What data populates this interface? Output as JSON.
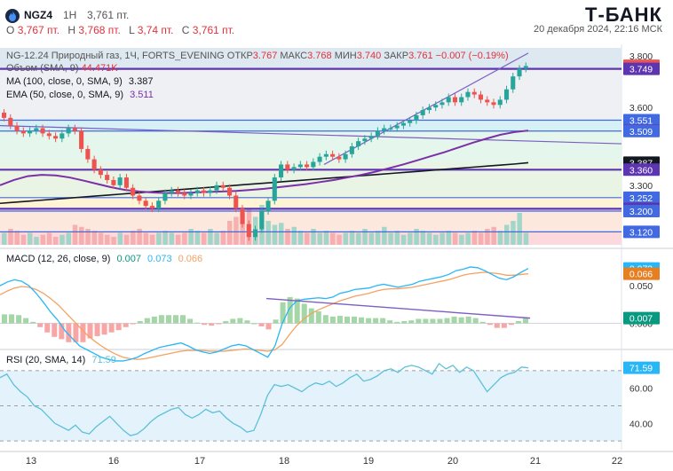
{
  "header": {
    "ticker": "NGZ4",
    "timeframe": "1H",
    "last_price": "3,761 пт.",
    "ohlc": [
      {
        "label": "O",
        "value": "3,767 пт."
      },
      {
        "label": "H",
        "value": "3,768 пт."
      },
      {
        "label": "L",
        "value": "3,74 пт."
      },
      {
        "label": "C",
        "value": "3,761 пт."
      }
    ],
    "brand": "Т-БАНК",
    "datetime": "20 декабря 2024, 22:16 МСК"
  },
  "colors": {
    "up": "#26a69a",
    "down": "#ef5350",
    "ma": "#131722",
    "ema": "#7b2fa8",
    "hline": "#4169e1",
    "channel": "#7b5fc4",
    "macd": "#29b6f6",
    "signal": "#f4a261",
    "rsi": "#5ec1d8",
    "label_purple": "#5e35b1"
  },
  "legend": {
    "title": "NG-12.24 Природный газ, 1Ч, FORTS_EVENING",
    "open_label": "ОТКР",
    "open": "3.767",
    "high_label": "МАКС",
    "high": "3.768",
    "low_label": "МИН",
    "low": "3.740",
    "close_label": "ЗАКР",
    "close": "3.761",
    "change": "−0.007 (−0.19%)",
    "volume": "Объем (SMA, 9)",
    "volume_value": "44.471K",
    "ma": "MA (100, close, 0, SMA, 9)",
    "ma_value": "3.387",
    "ema": "EMA (50, close, 0, SMA, 9)",
    "ema_value": "3.511",
    "macd": "MACD (12, 26, close, 9)",
    "macd_v1": "0.007",
    "macd_v2": "0.073",
    "macd_v3": "0.066",
    "rsi": "RSI (20, SMA, 14)",
    "rsi_value": "71.59"
  },
  "chart_data": [
    {
      "type": "candlestick",
      "title": "NG-12.24 Природный газ, 1Ч, FORTS_EVENING",
      "x_ticks": [
        "13",
        "16",
        "17",
        "18",
        "19",
        "20",
        "21",
        "22"
      ],
      "y_ticks": [
        "3.800",
        "3.600",
        "3.300",
        "3.200",
        "3.120"
      ],
      "price_labels": [
        {
          "text": "3.761",
          "value": 3.761,
          "kind": "last"
        },
        {
          "text": "3.749",
          "value": 3.749,
          "kind": "purple"
        },
        {
          "text": "3.551",
          "value": 3.551,
          "kind": "blue"
        },
        {
          "text": "3.511",
          "value": 3.511,
          "kind": "ema"
        },
        {
          "text": "3.509",
          "value": 3.509,
          "kind": "blue"
        },
        {
          "text": "3.387",
          "value": 3.387,
          "kind": "ma"
        },
        {
          "text": "3.360",
          "value": 3.36,
          "kind": "purple"
        },
        {
          "text": "3.252",
          "value": 3.252,
          "kind": "blue"
        },
        {
          "text": "3.209",
          "value": 3.209,
          "kind": "purple"
        },
        {
          "text": "3.200",
          "value": 3.2,
          "kind": "blue"
        },
        {
          "text": "3.120",
          "value": 3.12,
          "kind": "blue"
        }
      ],
      "ylim": [
        3.07,
        3.83
      ],
      "close": [
        3.56,
        3.53,
        3.51,
        3.5,
        3.51,
        3.52,
        3.5,
        3.49,
        3.48,
        3.5,
        3.52,
        3.51,
        3.44,
        3.4,
        3.36,
        3.34,
        3.32,
        3.3,
        3.33,
        3.29,
        3.26,
        3.24,
        3.22,
        3.21,
        3.24,
        3.27,
        3.28,
        3.27,
        3.26,
        3.27,
        3.28,
        3.27,
        3.28,
        3.3,
        3.29,
        3.26,
        3.21,
        3.15,
        3.1,
        3.13,
        3.2,
        3.24,
        3.33,
        3.38,
        3.36,
        3.37,
        3.38,
        3.37,
        3.39,
        3.41,
        3.42,
        3.41,
        3.4,
        3.42,
        3.45,
        3.47,
        3.48,
        3.49,
        3.51,
        3.52,
        3.52,
        3.53,
        3.54,
        3.55,
        3.57,
        3.59,
        3.6,
        3.61,
        3.62,
        3.64,
        3.62,
        3.64,
        3.66,
        3.65,
        3.63,
        3.62,
        3.61,
        3.63,
        3.67,
        3.72,
        3.75,
        3.76
      ],
      "ma100": [
        3.23,
        3.234,
        3.238,
        3.242,
        3.246,
        3.25,
        3.254,
        3.258,
        3.262,
        3.266,
        3.27,
        3.274,
        3.278,
        3.282,
        3.286,
        3.29,
        3.294,
        3.298,
        3.302,
        3.306,
        3.31,
        3.314,
        3.318,
        3.322,
        3.326,
        3.33,
        3.334,
        3.338,
        3.342,
        3.346,
        3.35,
        3.354,
        3.358,
        3.362,
        3.366,
        3.37,
        3.374,
        3.378,
        3.382,
        3.387
      ],
      "ema50": [
        3.3,
        3.32,
        3.335,
        3.34,
        3.338,
        3.33,
        3.318,
        3.305,
        3.292,
        3.282,
        3.276,
        3.272,
        3.27,
        3.27,
        3.272,
        3.274,
        3.276,
        3.278,
        3.282,
        3.286,
        3.292,
        3.298,
        3.304,
        3.312,
        3.32,
        3.33,
        3.34,
        3.352,
        3.366,
        3.38,
        3.396,
        3.412,
        3.428,
        3.446,
        3.464,
        3.48,
        3.495,
        3.505,
        3.511
      ],
      "volume": [
        0.3,
        0.4,
        0.35,
        0.25,
        0.3,
        0.2,
        0.25,
        0.3,
        0.2,
        0.25,
        0.3,
        0.5,
        0.45,
        0.4,
        0.35,
        0.3,
        0.25,
        0.2,
        0.3,
        0.25,
        0.35,
        0.4,
        0.3,
        0.25,
        0.3,
        0.35,
        0.3,
        0.25,
        0.3,
        0.4,
        0.35,
        0.3,
        0.4,
        0.3,
        0.35,
        0.6,
        0.7,
        0.8,
        0.9,
        0.7,
        1.0,
        0.6,
        0.5,
        0.55,
        0.4,
        0.45,
        0.35,
        0.3,
        0.4,
        0.3,
        0.35,
        0.3,
        0.25,
        0.3,
        0.35,
        0.3,
        0.4,
        0.3,
        0.35,
        0.45,
        0.3,
        0.35,
        0.25,
        0.3,
        0.4,
        0.35,
        0.3,
        0.25,
        0.3,
        0.35,
        0.3,
        0.25,
        0.3,
        0.35,
        0.3,
        0.4,
        0.45,
        0.35,
        0.5,
        0.6,
        0.8,
        0.3
      ]
    },
    {
      "type": "macd",
      "title": "MACD (12, 26, close, 9)",
      "y_ticks": [
        "0.050",
        "0.000"
      ],
      "price_labels": [
        {
          "text": "0.073",
          "value": 0.073,
          "kind": "macd"
        },
        {
          "text": "0.066",
          "value": 0.066,
          "kind": "signal"
        },
        {
          "text": "0.007",
          "value": 0.007,
          "kind": "hist"
        }
      ],
      "ylim": [
        -0.03,
        0.095
      ],
      "macd": [
        0.05,
        0.055,
        0.058,
        0.056,
        0.05,
        0.04,
        0.028,
        0.015,
        0.004,
        -0.01,
        -0.02,
        -0.03,
        -0.035,
        -0.04,
        -0.045,
        -0.048,
        -0.05,
        -0.05,
        -0.048,
        -0.045,
        -0.04,
        -0.036,
        -0.032,
        -0.03,
        -0.028,
        -0.026,
        -0.03,
        -0.035,
        -0.038,
        -0.04,
        -0.038,
        -0.034,
        -0.03,
        -0.028,
        -0.03,
        -0.035,
        -0.04,
        -0.045,
        -0.03,
        0.0,
        0.02,
        0.03,
        0.032,
        0.033,
        0.034,
        0.033,
        0.035,
        0.04,
        0.042,
        0.045,
        0.046,
        0.047,
        0.05,
        0.052,
        0.05,
        0.048,
        0.05,
        0.052,
        0.056,
        0.058,
        0.06,
        0.062,
        0.065,
        0.07,
        0.072,
        0.075,
        0.074,
        0.07,
        0.065,
        0.06,
        0.058,
        0.062,
        0.068,
        0.073
      ],
      "signal": [
        0.038,
        0.043,
        0.047,
        0.049,
        0.048,
        0.045,
        0.04,
        0.033,
        0.025,
        0.015,
        0.005,
        -0.005,
        -0.015,
        -0.023,
        -0.03,
        -0.036,
        -0.041,
        -0.045,
        -0.047,
        -0.048,
        -0.047,
        -0.045,
        -0.043,
        -0.041,
        -0.039,
        -0.037,
        -0.036,
        -0.036,
        -0.036,
        -0.037,
        -0.037,
        -0.037,
        -0.036,
        -0.035,
        -0.034,
        -0.035,
        -0.036,
        -0.037,
        -0.035,
        -0.028,
        -0.015,
        -0.003,
        0.006,
        0.013,
        0.018,
        0.022,
        0.026,
        0.03,
        0.033,
        0.036,
        0.038,
        0.04,
        0.043,
        0.045,
        0.046,
        0.046,
        0.047,
        0.048,
        0.05,
        0.052,
        0.054,
        0.056,
        0.058,
        0.061,
        0.064,
        0.066,
        0.067,
        0.068,
        0.067,
        0.066,
        0.064,
        0.064,
        0.065,
        0.066
      ],
      "hist": [
        0.012,
        0.012,
        0.011,
        0.007,
        0.002,
        -0.005,
        -0.012,
        -0.018,
        -0.021,
        -0.025,
        -0.025,
        -0.025,
        -0.02,
        -0.017,
        -0.015,
        -0.012,
        -0.009,
        -0.005,
        -0.001,
        0.003,
        0.007,
        0.009,
        0.011,
        0.011,
        0.011,
        0.011,
        0.006,
        0.001,
        -0.002,
        -0.003,
        -0.001,
        0.003,
        0.006,
        0.007,
        0.004,
        0.0,
        -0.004,
        -0.008,
        0.005,
        0.028,
        0.035,
        0.033,
        0.026,
        0.02,
        0.016,
        0.011,
        0.009,
        0.01,
        0.009,
        0.009,
        0.008,
        0.007,
        0.007,
        0.007,
        0.004,
        0.002,
        0.003,
        0.004,
        0.006,
        0.006,
        0.006,
        0.006,
        0.007,
        0.009,
        0.008,
        0.009,
        0.007,
        0.002,
        -0.002,
        -0.006,
        -0.006,
        -0.002,
        0.003,
        0.007
      ]
    },
    {
      "type": "line",
      "title": "RSI (20, SMA, 14)",
      "y_ticks": [
        "60.00",
        "40.00"
      ],
      "price_labels": [
        {
          "text": "71.59",
          "value": 71.59,
          "kind": "rsi"
        }
      ],
      "ylim": [
        25,
        80
      ],
      "rsi": [
        66,
        68,
        62,
        58,
        55,
        50,
        48,
        44,
        40,
        38,
        36,
        39,
        35,
        34,
        38,
        41,
        44,
        40,
        36,
        33,
        34,
        37,
        41,
        44,
        46,
        48,
        49,
        45,
        43,
        45,
        48,
        46,
        47,
        43,
        40,
        38,
        35,
        36,
        45,
        56,
        62,
        61,
        62,
        60,
        58,
        61,
        63,
        62,
        64,
        61,
        63,
        66,
        68,
        64,
        65,
        67,
        70,
        71,
        69,
        72,
        73,
        72,
        70,
        68,
        74,
        71,
        73,
        69,
        72,
        70,
        64,
        58,
        62,
        66,
        68,
        69,
        72,
        71.59
      ]
    }
  ]
}
